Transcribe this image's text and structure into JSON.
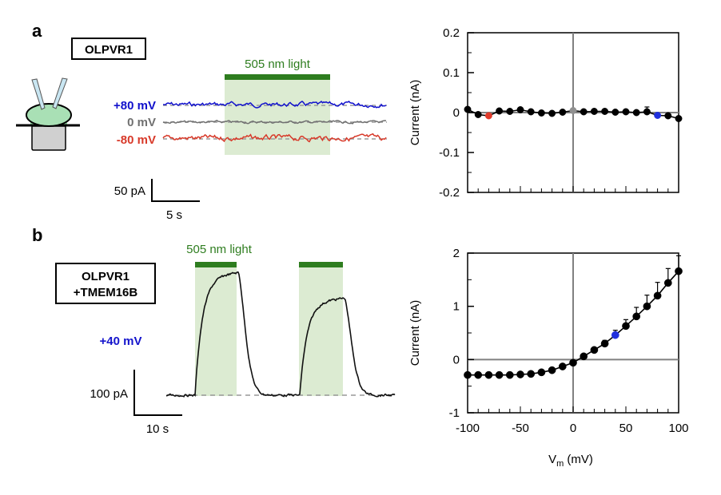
{
  "panel_a": {
    "letter": "a",
    "construct_label": "OLPVR1",
    "light_label": "505 nm light",
    "trace_labels": [
      "+80 mV",
      "0 mV",
      "-80 mV"
    ],
    "scalebar_y_label": "50 pA",
    "scalebar_x_label": "5 s"
  },
  "panel_b": {
    "letter": "b",
    "construct_label_line1": "OLPVR1",
    "construct_label_line2": "+TMEM16B",
    "light_label": "505 nm light",
    "voltage_label": "+40 mV",
    "scalebar_y_label": "100 pA",
    "scalebar_x_label": "10 s"
  },
  "colors": {
    "light_bar": "#2e7d1f",
    "light_shade": "#dcebd2",
    "trace_pos80": "#1010cc",
    "trace_0": "#707070",
    "trace_neg80": "#d83a2a",
    "label_40": "#1414cc",
    "marker": "#000000",
    "highlight_red": "#e03a2a",
    "highlight_blue": "#2030dd",
    "highlight_gray": "#909090"
  },
  "chart_data": [
    {
      "type": "scatter",
      "panel": "a",
      "xlabel": "",
      "ylabel": "Current (nA)",
      "xlim": [
        -100,
        100
      ],
      "ylim": [
        -0.2,
        0.2
      ],
      "yticks": [
        "0.2",
        "0.1",
        "0",
        "-0.1",
        "-0.2"
      ],
      "ytick_values": [
        0.2,
        0.1,
        0,
        -0.1,
        -0.2
      ],
      "x": [
        -100,
        -90,
        -80,
        -70,
        -60,
        -50,
        -40,
        -30,
        -20,
        -10,
        0,
        10,
        20,
        30,
        40,
        50,
        60,
        70,
        80,
        90,
        100
      ],
      "y": [
        0.008,
        -0.005,
        -0.008,
        0.004,
        0.003,
        0.007,
        0.002,
        -0.001,
        -0.002,
        0.001,
        0.005,
        0.002,
        0.003,
        0.003,
        0.001,
        0.002,
        0.0,
        0.002,
        -0.007,
        -0.008,
        -0.015
      ],
      "err": [
        0.0,
        0.0,
        0.0,
        0.003,
        0.0,
        0.0,
        0.0,
        0.0,
        0.0,
        0.0,
        0.0,
        0.0,
        0.0,
        0.0,
        0.0,
        0.0,
        0.004,
        0.012,
        0.0,
        0.0,
        0.0
      ],
      "highlights": [
        {
          "x": -80,
          "color": "red"
        },
        {
          "x": 0,
          "color": "gray"
        },
        {
          "x": 80,
          "color": "blue"
        }
      ]
    },
    {
      "type": "line",
      "panel": "b",
      "xlabel_main": "V",
      "xlabel_sub": "m",
      "xlabel_unit": " (mV)",
      "ylabel": "Current (nA)",
      "xlim": [
        -100,
        100
      ],
      "ylim": [
        -1,
        2
      ],
      "xticks": [
        "-100",
        "-50",
        "0",
        "50",
        "100"
      ],
      "xtick_values": [
        -100,
        -50,
        0,
        50,
        100
      ],
      "yticks": [
        "2",
        "1",
        "0",
        "-1"
      ],
      "ytick_values": [
        2,
        1,
        0,
        -1
      ],
      "x": [
        -100,
        -90,
        -80,
        -70,
        -60,
        -50,
        -40,
        -30,
        -20,
        -10,
        0,
        10,
        20,
        30,
        40,
        50,
        60,
        70,
        80,
        90,
        100
      ],
      "y": [
        -0.29,
        -0.29,
        -0.29,
        -0.29,
        -0.29,
        -0.28,
        -0.27,
        -0.24,
        -0.2,
        -0.13,
        -0.06,
        0.06,
        0.18,
        0.3,
        0.46,
        0.63,
        0.81,
        1.0,
        1.2,
        1.44,
        1.66
      ],
      "err": [
        0.03,
        0.04,
        0.04,
        0.04,
        0.04,
        0.04,
        0.04,
        0.03,
        0.02,
        0.02,
        0.02,
        0.02,
        0.04,
        0.06,
        0.09,
        0.12,
        0.17,
        0.21,
        0.25,
        0.27,
        0.29
      ],
      "highlights": [
        {
          "x": 40,
          "color": "blue"
        }
      ]
    }
  ]
}
